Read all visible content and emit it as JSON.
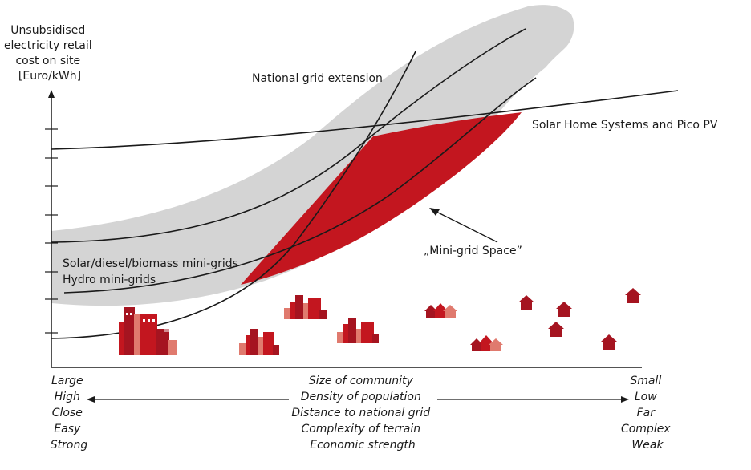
{
  "y_axis_label": [
    "Unsubsidised",
    "electricity retail",
    "cost on site",
    "[Euro/kWh]"
  ],
  "curves": {
    "national_grid": "National grid extension",
    "solar_home": "Solar Home Systems and Pico PV",
    "solar_diesel": "Solar/diesel/biomass mini-grids",
    "hydro": "Hydro mini-grids",
    "mini_grid_space": "„Mini-grid Space”"
  },
  "x_axis": {
    "left": [
      "Large",
      "High",
      "Close",
      "Easy",
      "Strong"
    ],
    "center": [
      "Size of community",
      "Density of population",
      "Distance to national grid",
      "Complexity of terrain",
      "Economic strength"
    ],
    "right": [
      "Small",
      "Low",
      "Far",
      "Complex",
      "Weak"
    ]
  },
  "colors": {
    "band": "#d4d4d4",
    "space": "#c3161f",
    "house": "#a51420",
    "axis": "#1a1a1a"
  }
}
